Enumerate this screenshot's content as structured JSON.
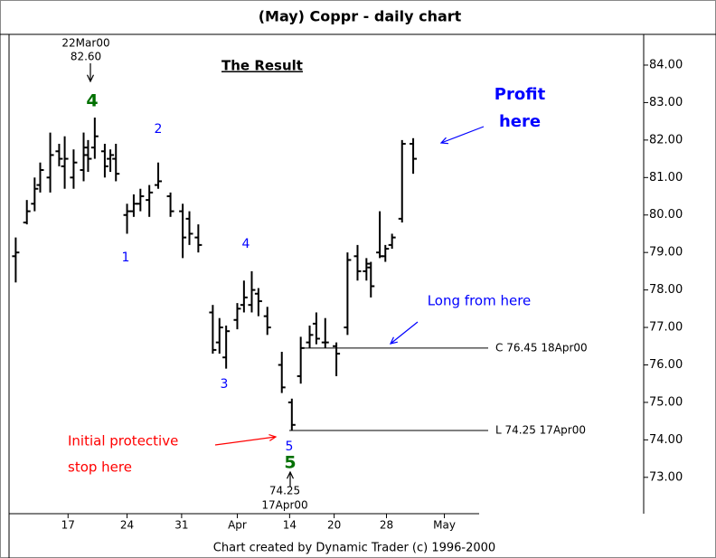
{
  "chart_data": {
    "type": "ohlc",
    "title": "(May) Coppr - daily chart",
    "footer": "Chart created by Dynamic Trader (c) 1996-2000",
    "color": "#000000",
    "x": [
      0.6,
      1.6,
      2.3,
      2.8,
      3.7,
      4.5,
      5.0,
      5.8,
      6.7,
      7.1,
      7.7,
      8.6,
      9.1,
      9.6,
      10.6,
      11.2,
      11.8,
      12.6,
      13.4,
      14.5,
      15.6,
      16.2,
      17.0,
      18.3,
      18.9,
      19.5,
      20.5,
      21.1,
      21.8,
      22.4,
      23.2,
      24.5,
      25.4,
      26.2,
      27.0,
      27.6,
      28.4,
      29.4,
      30.4,
      31.3,
      32.1,
      32.5,
      33.3,
      33.8,
      34.4,
      35.3,
      36.3
    ],
    "open": [
      78.9,
      79.8,
      80.3,
      80.8,
      81.0,
      81.7,
      81.3,
      81.0,
      81.2,
      81.6,
      81.8,
      81.7,
      81.5,
      81.5,
      80.0,
      80.1,
      80.3,
      80.4,
      80.8,
      80.5,
      80.1,
      79.9,
      79.4,
      77.4,
      76.6,
      76.2,
      77.2,
      77.6,
      77.6,
      77.9,
      77.3,
      76.0,
      75.0,
      75.7,
      76.6,
      77.1,
      76.6,
      76.5,
      77.0,
      78.9,
      78.5,
      78.6,
      79.0,
      78.9,
      79.2,
      79.9,
      81.9
    ],
    "high": [
      79.4,
      80.4,
      81.0,
      81.4,
      82.2,
      81.9,
      82.1,
      81.75,
      82.2,
      82.0,
      82.6,
      81.9,
      81.75,
      81.9,
      80.3,
      80.55,
      80.7,
      80.8,
      81.4,
      80.6,
      80.3,
      80.1,
      79.75,
      77.6,
      77.25,
      77.05,
      77.65,
      78.25,
      78.5,
      78.05,
      77.55,
      76.35,
      75.1,
      76.75,
      77.05,
      77.4,
      77.25,
      76.6,
      79.0,
      79.2,
      78.85,
      78.75,
      80.1,
      79.2,
      79.5,
      82.0,
      82.05
    ],
    "low": [
      78.2,
      79.75,
      80.1,
      80.6,
      80.6,
      81.3,
      80.7,
      80.7,
      80.9,
      81.15,
      81.5,
      81.0,
      81.15,
      80.9,
      79.5,
      79.95,
      80.1,
      79.95,
      80.7,
      79.95,
      78.85,
      79.2,
      79.0,
      76.3,
      76.3,
      75.9,
      76.95,
      77.4,
      77.4,
      77.3,
      76.8,
      75.25,
      74.25,
      75.5,
      76.45,
      76.55,
      76.45,
      75.7,
      76.8,
      78.25,
      78.25,
      77.8,
      78.85,
      78.75,
      79.1,
      79.8,
      81.1
    ],
    "close": [
      79.0,
      80.1,
      80.7,
      81.2,
      81.6,
      81.5,
      81.5,
      81.4,
      81.8,
      81.5,
      82.1,
      81.3,
      81.6,
      81.1,
      80.1,
      80.3,
      80.5,
      80.6,
      80.9,
      80.1,
      79.4,
      79.5,
      79.2,
      76.4,
      77.0,
      76.9,
      77.5,
      77.8,
      78.0,
      77.7,
      77.0,
      75.4,
      74.4,
      76.45,
      76.8,
      76.7,
      76.6,
      76.3,
      78.8,
      78.5,
      78.7,
      78.1,
      78.9,
      79.1,
      79.4,
      81.9,
      81.5
    ],
    "xlim": [
      0,
      57
    ],
    "xticks": [
      {
        "value": 5.3,
        "label": "17"
      },
      {
        "value": 10.6,
        "label": "24"
      },
      {
        "value": 15.5,
        "label": "31"
      },
      {
        "value": 20.5,
        "label": "Apr"
      },
      {
        "value": 25.2,
        "label": "14"
      },
      {
        "value": 29.2,
        "label": "20"
      },
      {
        "value": 33.9,
        "label": "28"
      },
      {
        "value": 39.1,
        "label": "May"
      }
    ],
    "ylim": [
      72.03,
      84.82
    ],
    "yticks": [
      {
        "value": 73,
        "label": "73.00"
      },
      {
        "value": 74,
        "label": "74.00"
      },
      {
        "value": 75,
        "label": "75.00"
      },
      {
        "value": 76,
        "label": "76.00"
      },
      {
        "value": 77,
        "label": "77.00"
      },
      {
        "value": 78,
        "label": "78.00"
      },
      {
        "value": 79,
        "label": "79.00"
      },
      {
        "value": 80,
        "label": "80.00"
      },
      {
        "value": 81,
        "label": "81.00"
      },
      {
        "value": 82,
        "label": "82.00"
      },
      {
        "value": 83,
        "label": "83.00"
      },
      {
        "value": 84,
        "label": "84.00"
      }
    ],
    "levels": [
      {
        "value": 76.45,
        "label": "C 76.45 18Apr00"
      },
      {
        "value": 74.25,
        "label": "L 74.25 17Apr00"
      }
    ],
    "annotations": [
      {
        "text": "22Mar00",
        "color": "#000000"
      },
      {
        "text": "82.60",
        "color": "#000000"
      },
      {
        "text": "4",
        "color": "#007000"
      },
      {
        "text": "2",
        "color": "#0000ff"
      },
      {
        "text": "1",
        "color": "#0000ff"
      },
      {
        "text": "4",
        "color": "#0000ff"
      },
      {
        "text": "3",
        "color": "#0000ff"
      },
      {
        "text": "5",
        "color": "#0000ff"
      },
      {
        "text": "5",
        "color": "#007000"
      },
      {
        "text": "74.25",
        "color": "#000000"
      },
      {
        "text": "17Apr00",
        "color": "#000000"
      },
      {
        "text": "The Result",
        "color": "#000000"
      },
      {
        "text": "Profit",
        "color": "#0000ff"
      },
      {
        "text": "here",
        "color": "#0000ff"
      },
      {
        "text": "Long from here",
        "color": "#0000ff"
      },
      {
        "text": "Initial protective",
        "color": "#ff0000"
      },
      {
        "text": "stop here",
        "color": "#ff0000"
      }
    ]
  }
}
